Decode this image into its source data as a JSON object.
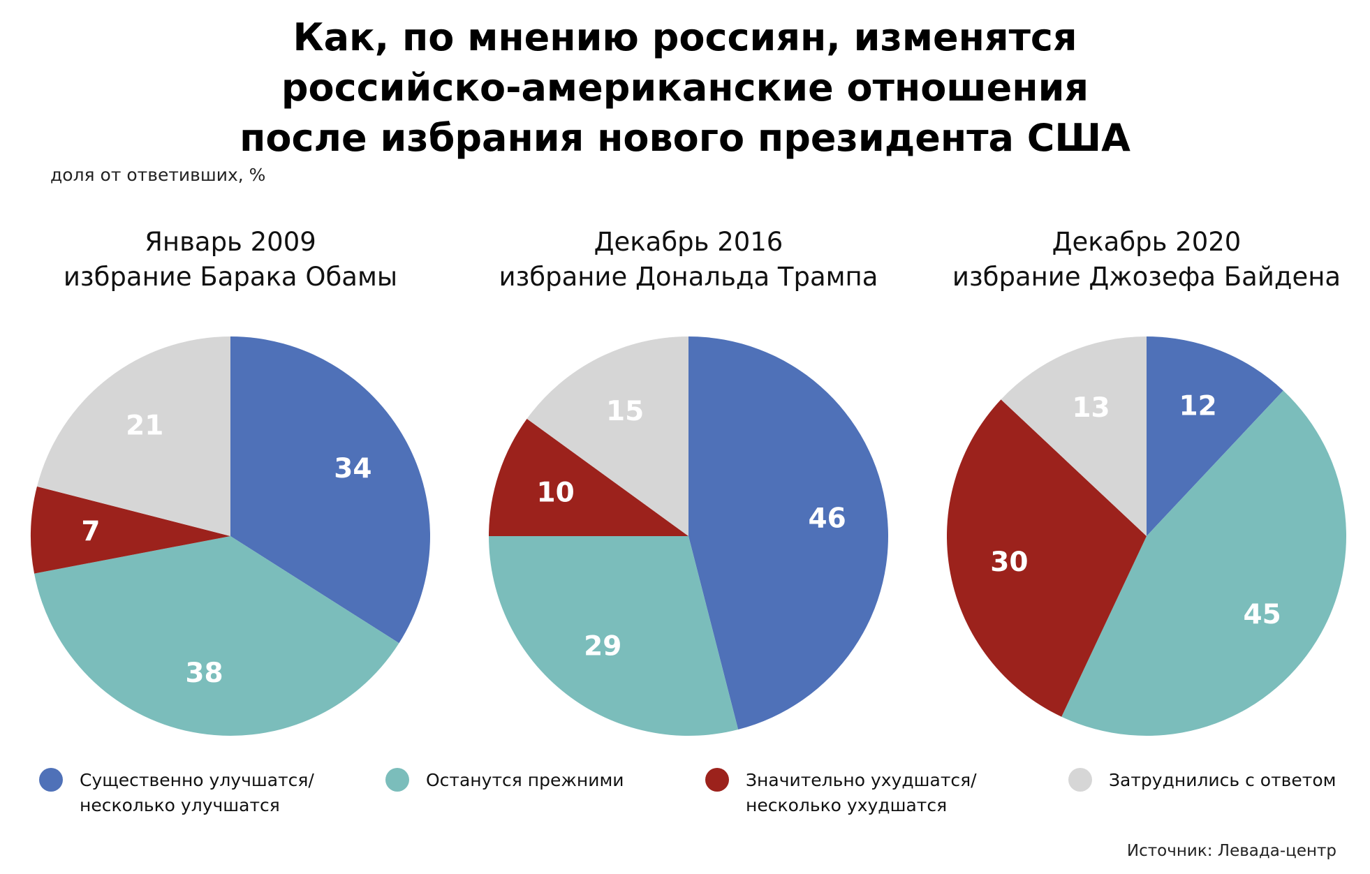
{
  "title": "Как, по мнению россиян, изменятся\nроссийско-американские отношения\nпосле избрания нового президента США",
  "subtitle": "доля от ответивших, %",
  "source": "Источник: Левада-центр",
  "colors": {
    "improve": "#4f71b8",
    "same": "#7bbdbb",
    "worse": "#9c221c",
    "undecided": "#d6d6d6"
  },
  "legend": [
    {
      "key": "improve",
      "label": "Существенно улучшатся/\nнесколько улучшатся"
    },
    {
      "key": "same",
      "label": "Останутся прежними"
    },
    {
      "key": "worse",
      "label": "Значительно ухудшатся/\nнесколько ухудшатся"
    },
    {
      "key": "undecided",
      "label": "Затруднились с ответом"
    }
  ],
  "chart_data": [
    {
      "type": "pie",
      "title_line1": "Январь 2009",
      "title_line2": "избрание Барака Обамы",
      "slices": [
        {
          "key": "improve",
          "value": 34
        },
        {
          "key": "same",
          "value": 38
        },
        {
          "key": "worse",
          "value": 7
        },
        {
          "key": "undecided",
          "value": 21
        }
      ]
    },
    {
      "type": "pie",
      "title_line1": "Декабрь 2016",
      "title_line2": "избрание Дональда Трампа",
      "slices": [
        {
          "key": "improve",
          "value": 46
        },
        {
          "key": "same",
          "value": 29
        },
        {
          "key": "worse",
          "value": 10
        },
        {
          "key": "undecided",
          "value": 15
        }
      ]
    },
    {
      "type": "pie",
      "title_line1": "Декабрь 2020",
      "title_line2": "избрание Джозефа Байдена",
      "slices": [
        {
          "key": "improve",
          "value": 12
        },
        {
          "key": "same",
          "value": 45
        },
        {
          "key": "worse",
          "value": 30
        },
        {
          "key": "undecided",
          "value": 13
        }
      ]
    }
  ]
}
